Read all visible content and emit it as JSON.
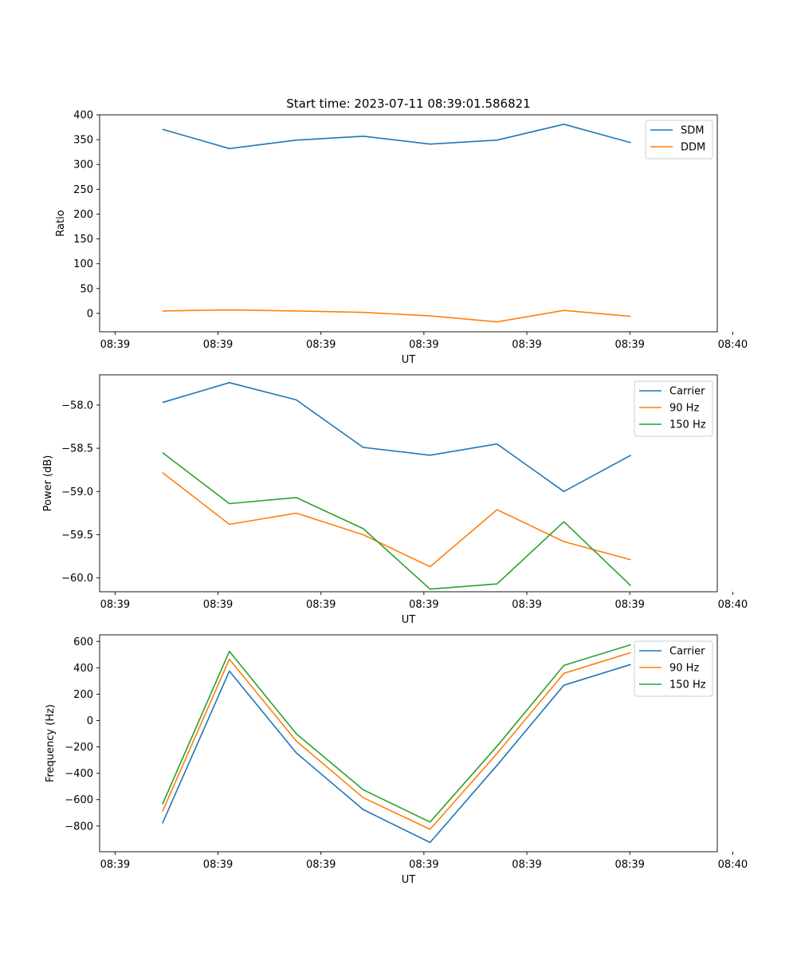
{
  "figure": {
    "title": "Start time: 2023-07-11 08:39:01.586821"
  },
  "colors": {
    "c0": "#1f77b4",
    "c1": "#ff7f0e",
    "c2": "#2ca02c",
    "axis": "#000000",
    "legend_border": "#cccccc"
  },
  "chart_data": [
    {
      "type": "line",
      "name": "ratio-chart",
      "title": "Start time: 2023-07-11 08:39:01.586821",
      "xlabel": "UT",
      "ylabel": "Ratio",
      "x_unit": "seconds after 08:39:00",
      "xlim": [
        -1.5,
        58.5
      ],
      "x_ticks": [
        0,
        10,
        20,
        30,
        40,
        50,
        60
      ],
      "x_tick_labels": [
        "08:39",
        "08:39",
        "08:39",
        "08:39",
        "08:39",
        "08:39",
        "08:40"
      ],
      "ylim": [
        -37,
        400
      ],
      "y_ticks": [
        0,
        50,
        100,
        150,
        200,
        250,
        300,
        350,
        400
      ],
      "y_tick_labels": [
        "0",
        "50",
        "100",
        "150",
        "200",
        "250",
        "300",
        "350",
        "400"
      ],
      "x": [
        4.6,
        11.1,
        17.6,
        24.1,
        30.6,
        37.1,
        43.6,
        50.1
      ],
      "legend_position": "top-right",
      "series": [
        {
          "name": "SDM",
          "color_key": "c0",
          "values": [
            371,
            332,
            349,
            357,
            341,
            349,
            381,
            344
          ]
        },
        {
          "name": "DDM",
          "color_key": "c1",
          "values": [
            5,
            7,
            5,
            2,
            -5,
            -17,
            6,
            -6
          ]
        }
      ]
    },
    {
      "type": "line",
      "name": "power-chart",
      "title": "",
      "xlabel": "UT",
      "ylabel": "Power (dB)",
      "x_unit": "seconds after 08:39:00",
      "xlim": [
        -1.5,
        58.5
      ],
      "x_ticks": [
        0,
        10,
        20,
        30,
        40,
        50,
        60
      ],
      "x_tick_labels": [
        "08:39",
        "08:39",
        "08:39",
        "08:39",
        "08:39",
        "08:39",
        "08:40"
      ],
      "ylim": [
        -60.16,
        -57.65
      ],
      "y_ticks": [
        -58.0,
        -58.5,
        -59.0,
        -59.5,
        -60.0
      ],
      "y_tick_labels": [
        "−58.0",
        "−58.5",
        "−59.0",
        "−59.5",
        "−60.0"
      ],
      "x": [
        4.6,
        11.1,
        17.6,
        24.1,
        30.6,
        37.1,
        43.6,
        50.1
      ],
      "legend_position": "top-right",
      "series": [
        {
          "name": "Carrier",
          "color_key": "c0",
          "values": [
            -57.97,
            -57.74,
            -57.94,
            -58.49,
            -58.58,
            -58.45,
            -59.0,
            -58.58
          ]
        },
        {
          "name": "90 Hz",
          "color_key": "c1",
          "values": [
            -58.78,
            -59.38,
            -59.25,
            -59.5,
            -59.87,
            -59.21,
            -59.58,
            -59.79
          ]
        },
        {
          "name": "150 Hz",
          "color_key": "c2",
          "values": [
            -58.55,
            -59.14,
            -59.07,
            -59.43,
            -60.13,
            -60.07,
            -59.35,
            -60.09
          ]
        }
      ]
    },
    {
      "type": "line",
      "name": "frequency-chart",
      "title": "",
      "xlabel": "UT",
      "ylabel": "Frequency (Hz)",
      "x_unit": "seconds after 08:39:00",
      "xlim": [
        -1.5,
        58.5
      ],
      "x_ticks": [
        0,
        10,
        20,
        30,
        40,
        50,
        60
      ],
      "x_tick_labels": [
        "08:39",
        "08:39",
        "08:39",
        "08:39",
        "08:39",
        "08:39",
        "08:40"
      ],
      "ylim": [
        -995,
        650
      ],
      "y_ticks": [
        600,
        400,
        200,
        0,
        -200,
        -400,
        -600,
        -800
      ],
      "y_tick_labels": [
        "600",
        "400",
        "200",
        "0",
        "−200",
        "−400",
        "−600",
        "−800"
      ],
      "x": [
        4.6,
        11.1,
        17.6,
        24.1,
        30.6,
        37.1,
        43.6,
        50.1
      ],
      "legend_position": "top-right",
      "series": [
        {
          "name": "Carrier",
          "color_key": "c0",
          "values": [
            -780,
            375,
            -245,
            -675,
            -925,
            -340,
            268,
            425
          ]
        },
        {
          "name": "90 Hz",
          "color_key": "c1",
          "values": [
            -690,
            465,
            -155,
            -585,
            -825,
            -250,
            358,
            515
          ]
        },
        {
          "name": "150 Hz",
          "color_key": "c2",
          "values": [
            -635,
            525,
            -100,
            -525,
            -770,
            -195,
            418,
            575
          ]
        }
      ]
    }
  ]
}
